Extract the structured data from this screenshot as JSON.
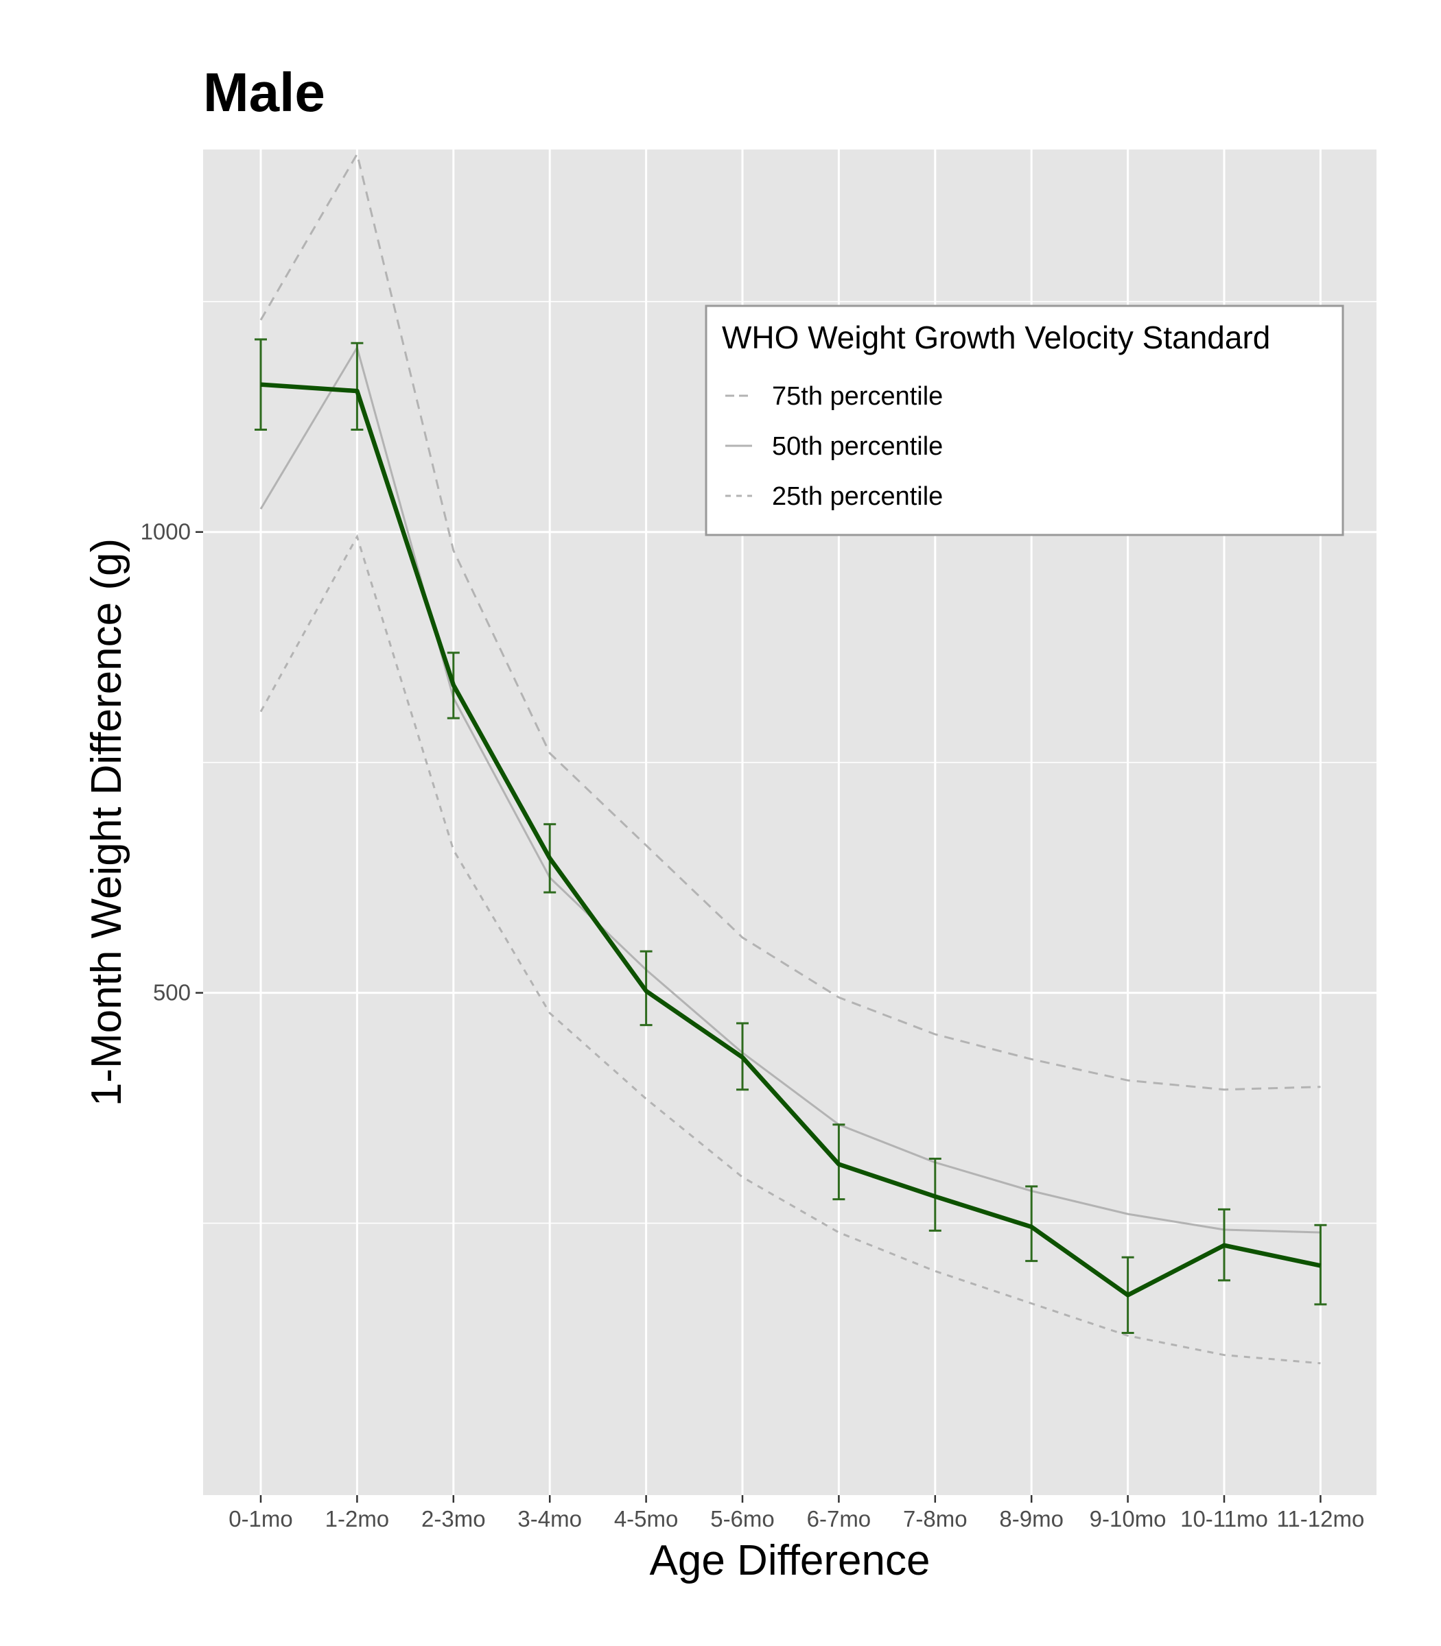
{
  "chart_data": {
    "type": "line",
    "title": "Male",
    "xlabel": "Age Difference",
    "ylabel": "1-Month Weight Difference (g)",
    "categories": [
      "0-1mo",
      "1-2mo",
      "2-3mo",
      "3-4mo",
      "4-5mo",
      "5-6mo",
      "6-7mo",
      "7-8mo",
      "8-9mo",
      "9-10mo",
      "10-11mo",
      "11-12mo"
    ],
    "ylim": [
      -45,
      1415
    ],
    "yticks": [
      500,
      1000
    ],
    "grid": true,
    "legend": {
      "title": "WHO Weight Growth Velocity Standard",
      "placement": "top-right",
      "entries": [
        "75th percentile",
        "50th percentile",
        "25th percentile"
      ]
    },
    "series": [
      {
        "name": "",
        "color": "#0d5200",
        "values": [
          1160,
          1153,
          834,
          646,
          502,
          430,
          314,
          279,
          246,
          172,
          226,
          204
        ],
        "error_low": [
          1111,
          1111,
          798,
          609,
          465,
          395,
          276,
          242,
          209,
          131,
          188,
          162
        ],
        "error_high": [
          1209,
          1205,
          869,
          683,
          545,
          467,
          357,
          320,
          290,
          213,
          265,
          248
        ]
      },
      {
        "name": "75th percentile",
        "color": "#b3b3b3",
        "dash": "long",
        "values": [
          1230,
          1410,
          980,
          760,
          660,
          560,
          495,
          455,
          428,
          405,
          395,
          398
        ]
      },
      {
        "name": "50th percentile",
        "color": "#b3b3b3",
        "dash": "solid",
        "values": [
          1025,
          1200,
          820,
          625,
          525,
          435,
          357,
          316,
          285,
          260,
          243,
          240
        ]
      },
      {
        "name": "25th percentile",
        "color": "#b3b3b3",
        "dash": "short",
        "values": [
          805,
          995,
          655,
          478,
          385,
          300,
          240,
          198,
          163,
          128,
          107,
          98
        ]
      }
    ]
  }
}
